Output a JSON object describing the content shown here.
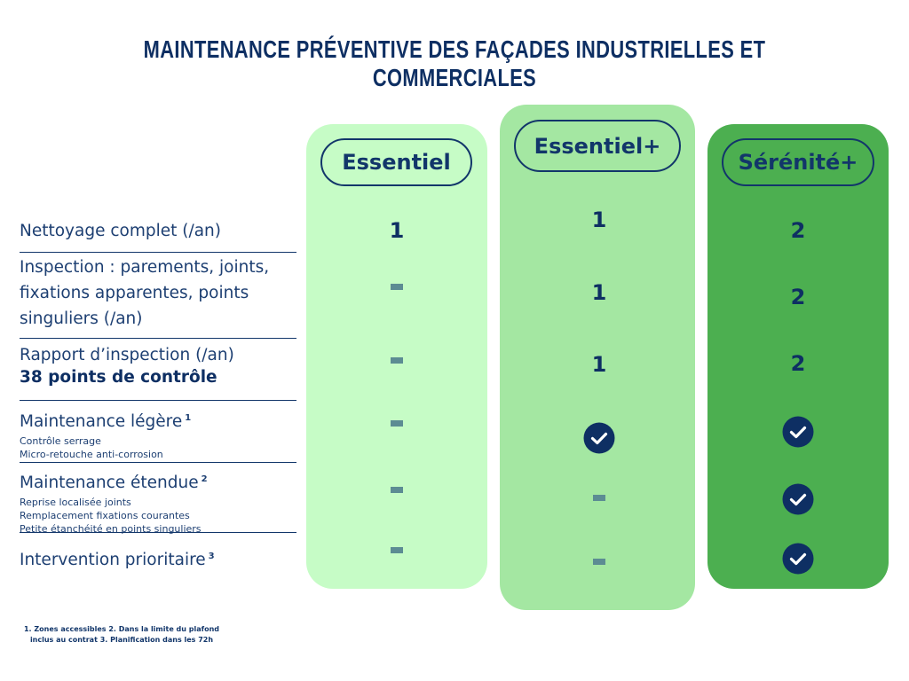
{
  "header": {
    "title": "MAINTENANCE PRÉVENTIVE DES FAÇADES INDUSTRIELLES ET COMMERCIALES"
  },
  "plans": [
    "Essentiel",
    "Essentiel+",
    "Sérénité+"
  ],
  "rows": [
    {
      "label": "Nettoyage complet (/an)",
      "cells": [
        1,
        1,
        2
      ]
    },
    {
      "label": "Inspection : parements, joints, fixations apparentes, points singuliers (/an)",
      "cells": [
        false,
        1,
        2
      ]
    },
    {
      "label": "Rapport d’inspection (/an)",
      "detail": "38 points de contrôle",
      "cells": [
        false,
        1,
        2
      ]
    },
    {
      "label": "Maintenance légère",
      "note": "1",
      "sublines": [
        "Contrôle serrage",
        "Micro-retouche anti-corrosion"
      ],
      "cells": [
        false,
        true,
        true
      ]
    },
    {
      "label": "Maintenance étendue",
      "note": "2",
      "sublines": [
        "Reprise localisée joints",
        "Remplacement fixations courantes",
        "Petite étanchéité en points singuliers"
      ],
      "cells": [
        false,
        false,
        true
      ]
    },
    {
      "label": "Intervention prioritaire",
      "note": "3",
      "cells": [
        false,
        false,
        true
      ]
    }
  ],
  "footnote": "1. Zones accessibles 2. Dans la limite du plafond inclus au contrat 3. Planification dans les 72h"
}
